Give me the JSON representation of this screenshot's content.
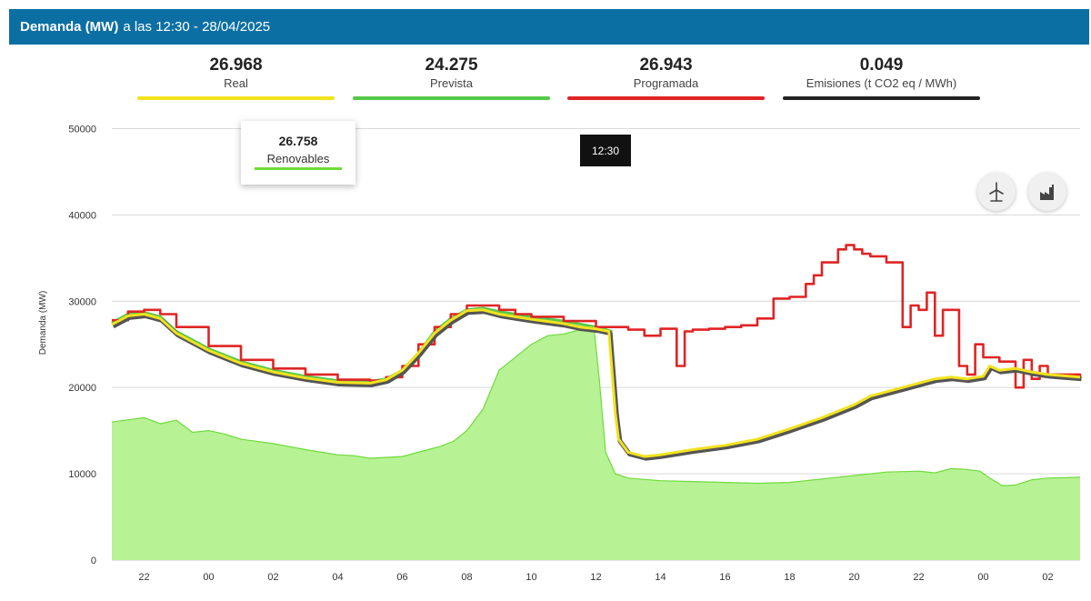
{
  "header": {
    "title_bold": "Demanda (MW)",
    "title_rest": "a las 12:30 - 28/04/2025"
  },
  "summary": [
    {
      "value": "26.968",
      "label": "Real",
      "color": "#f2e21e"
    },
    {
      "value": "24.275",
      "label": "Prevista",
      "color": "#55c94a"
    },
    {
      "value": "26.943",
      "label": "Programada",
      "color": "#e02424"
    },
    {
      "value": "0.049",
      "label": "Emisiones (t CO2 eq / MWh)",
      "color": "#222222"
    }
  ],
  "tooltip": {
    "value": "26.758",
    "label": "Renovables",
    "color": "#6fdb3a"
  },
  "time_tooltip": "12:30",
  "icons": [
    "wind-turbine-icon",
    "factory-icon"
  ],
  "chart_data": {
    "type": "line",
    "ylabel": "Demanda (MW)",
    "ylim": [
      0,
      55000
    ],
    "yticks": [
      0,
      10000,
      20000,
      30000,
      40000,
      50000
    ],
    "xlim": [
      21,
      51
    ],
    "xticks": [
      22,
      24,
      26,
      28,
      30,
      32,
      34,
      36,
      38,
      40,
      42,
      44,
      46,
      48,
      50
    ],
    "xtick_labels": [
      "22",
      "00",
      "02",
      "04",
      "06",
      "08",
      "10",
      "12",
      "14",
      "16",
      "18",
      "20",
      "22",
      "00",
      "02"
    ],
    "grid": true,
    "series": [
      {
        "name": "Renovables",
        "type": "area",
        "color": "#6fdb3a",
        "fill": "#b7f295",
        "x": [
          21,
          22,
          22.5,
          23,
          23.5,
          24,
          24.5,
          25,
          26,
          27,
          27.5,
          28,
          28.5,
          29,
          30,
          30.8,
          31.2,
          31.6,
          32,
          32.5,
          33,
          34,
          34.5,
          35,
          35.5,
          35.95,
          36.1,
          36.3,
          36.6,
          37,
          38,
          39,
          40,
          41,
          42,
          43,
          44,
          45,
          46,
          46.5,
          47,
          47.5,
          47.9,
          48.2,
          48.6,
          49,
          49.5,
          50,
          51
        ],
        "y": [
          16000,
          16500,
          15800,
          16200,
          14800,
          15000,
          14600,
          14000,
          13500,
          12800,
          12500,
          12200,
          12100,
          11800,
          12000,
          12800,
          13200,
          13800,
          15000,
          17500,
          22000,
          25000,
          26000,
          26200,
          26700,
          26500,
          21000,
          12500,
          10000,
          9500,
          9200,
          9100,
          9000,
          8900,
          9000,
          9400,
          9800,
          10200,
          10300,
          10100,
          10600,
          10500,
          10300,
          9500,
          8600,
          8700,
          9300,
          9500,
          9600
        ]
      },
      {
        "name": "Prevista",
        "color": "#55c94a",
        "x": [
          21,
          21.5,
          22,
          22.5,
          23,
          24,
          25,
          26,
          27,
          28,
          29,
          29.5,
          30,
          30.5,
          31,
          31.5,
          32,
          32.5,
          33,
          33.5,
          34,
          35,
          36,
          36.5
        ],
        "y": [
          27500,
          28500,
          28700,
          28200,
          26500,
          24500,
          23000,
          22000,
          21300,
          20800,
          20700,
          21000,
          22000,
          24000,
          26500,
          28000,
          29000,
          29200,
          28800,
          28500,
          28200,
          27700,
          27000,
          26500
        ]
      },
      {
        "name": "Programada",
        "color": "#e02424",
        "step": true,
        "x": [
          21,
          21.5,
          22,
          22.5,
          23,
          24,
          25,
          26,
          27,
          28,
          29,
          29.5,
          30,
          30.5,
          31,
          31.5,
          32,
          32.5,
          33,
          33.5,
          34,
          35,
          36,
          36.5,
          37,
          37.5,
          38,
          38.5,
          38.75,
          39,
          39.5,
          40,
          40.5,
          41,
          41.5,
          42,
          42.5,
          42.75,
          43,
          43.5,
          43.75,
          44,
          44.25,
          44.5,
          45,
          45.5,
          45.75,
          46,
          46.25,
          46.5,
          46.75,
          47,
          47.25,
          47.5,
          47.75,
          48,
          48.5,
          49,
          49.25,
          49.5,
          49.75,
          50,
          50.25,
          50.5,
          51
        ],
        "y": [
          27800,
          28800,
          29000,
          28500,
          27000,
          24800,
          23200,
          22200,
          21500,
          20900,
          20800,
          21200,
          22500,
          25000,
          27000,
          28500,
          29500,
          29500,
          29000,
          28500,
          28200,
          27700,
          27000,
          27000,
          26700,
          26000,
          26800,
          22500,
          26500,
          26700,
          26800,
          27000,
          27200,
          28000,
          30300,
          30500,
          32000,
          33000,
          34500,
          36000,
          36500,
          36000,
          35500,
          35200,
          34500,
          27000,
          29500,
          29000,
          31000,
          26000,
          29000,
          29000,
          22500,
          21500,
          25000,
          23500,
          23000,
          20000,
          23200,
          21000,
          22500,
          21500,
          21500,
          21500,
          21000
        ]
      },
      {
        "name": "Real",
        "color": "#f2e21e",
        "shadow": "#555555",
        "x": [
          21,
          21.5,
          22,
          22.5,
          23,
          24,
          25,
          26,
          27,
          28,
          29,
          29.5,
          30,
          30.5,
          31,
          31.5,
          32,
          32.5,
          33,
          33.5,
          34,
          35,
          35.5,
          36,
          36.4,
          36.6,
          36.7,
          37,
          37.5,
          38,
          39,
          40,
          41,
          42,
          43,
          44,
          44.5,
          45,
          45.5,
          46,
          46.5,
          47,
          47.5,
          48,
          48.2,
          48.5,
          49,
          49.5,
          50,
          51
        ],
        "y": [
          27300,
          28300,
          28500,
          28000,
          26300,
          24300,
          22800,
          21800,
          21100,
          20600,
          20500,
          20900,
          22000,
          24000,
          26300,
          27800,
          28900,
          29000,
          28500,
          28200,
          27900,
          27400,
          27000,
          26800,
          26500,
          17000,
          14000,
          12500,
          12000,
          12200,
          12800,
          13300,
          14000,
          15200,
          16500,
          18000,
          19000,
          19500,
          20000,
          20500,
          21000,
          21200,
          21000,
          21300,
          22500,
          22000,
          22200,
          21800,
          21500,
          21200
        ]
      }
    ]
  }
}
